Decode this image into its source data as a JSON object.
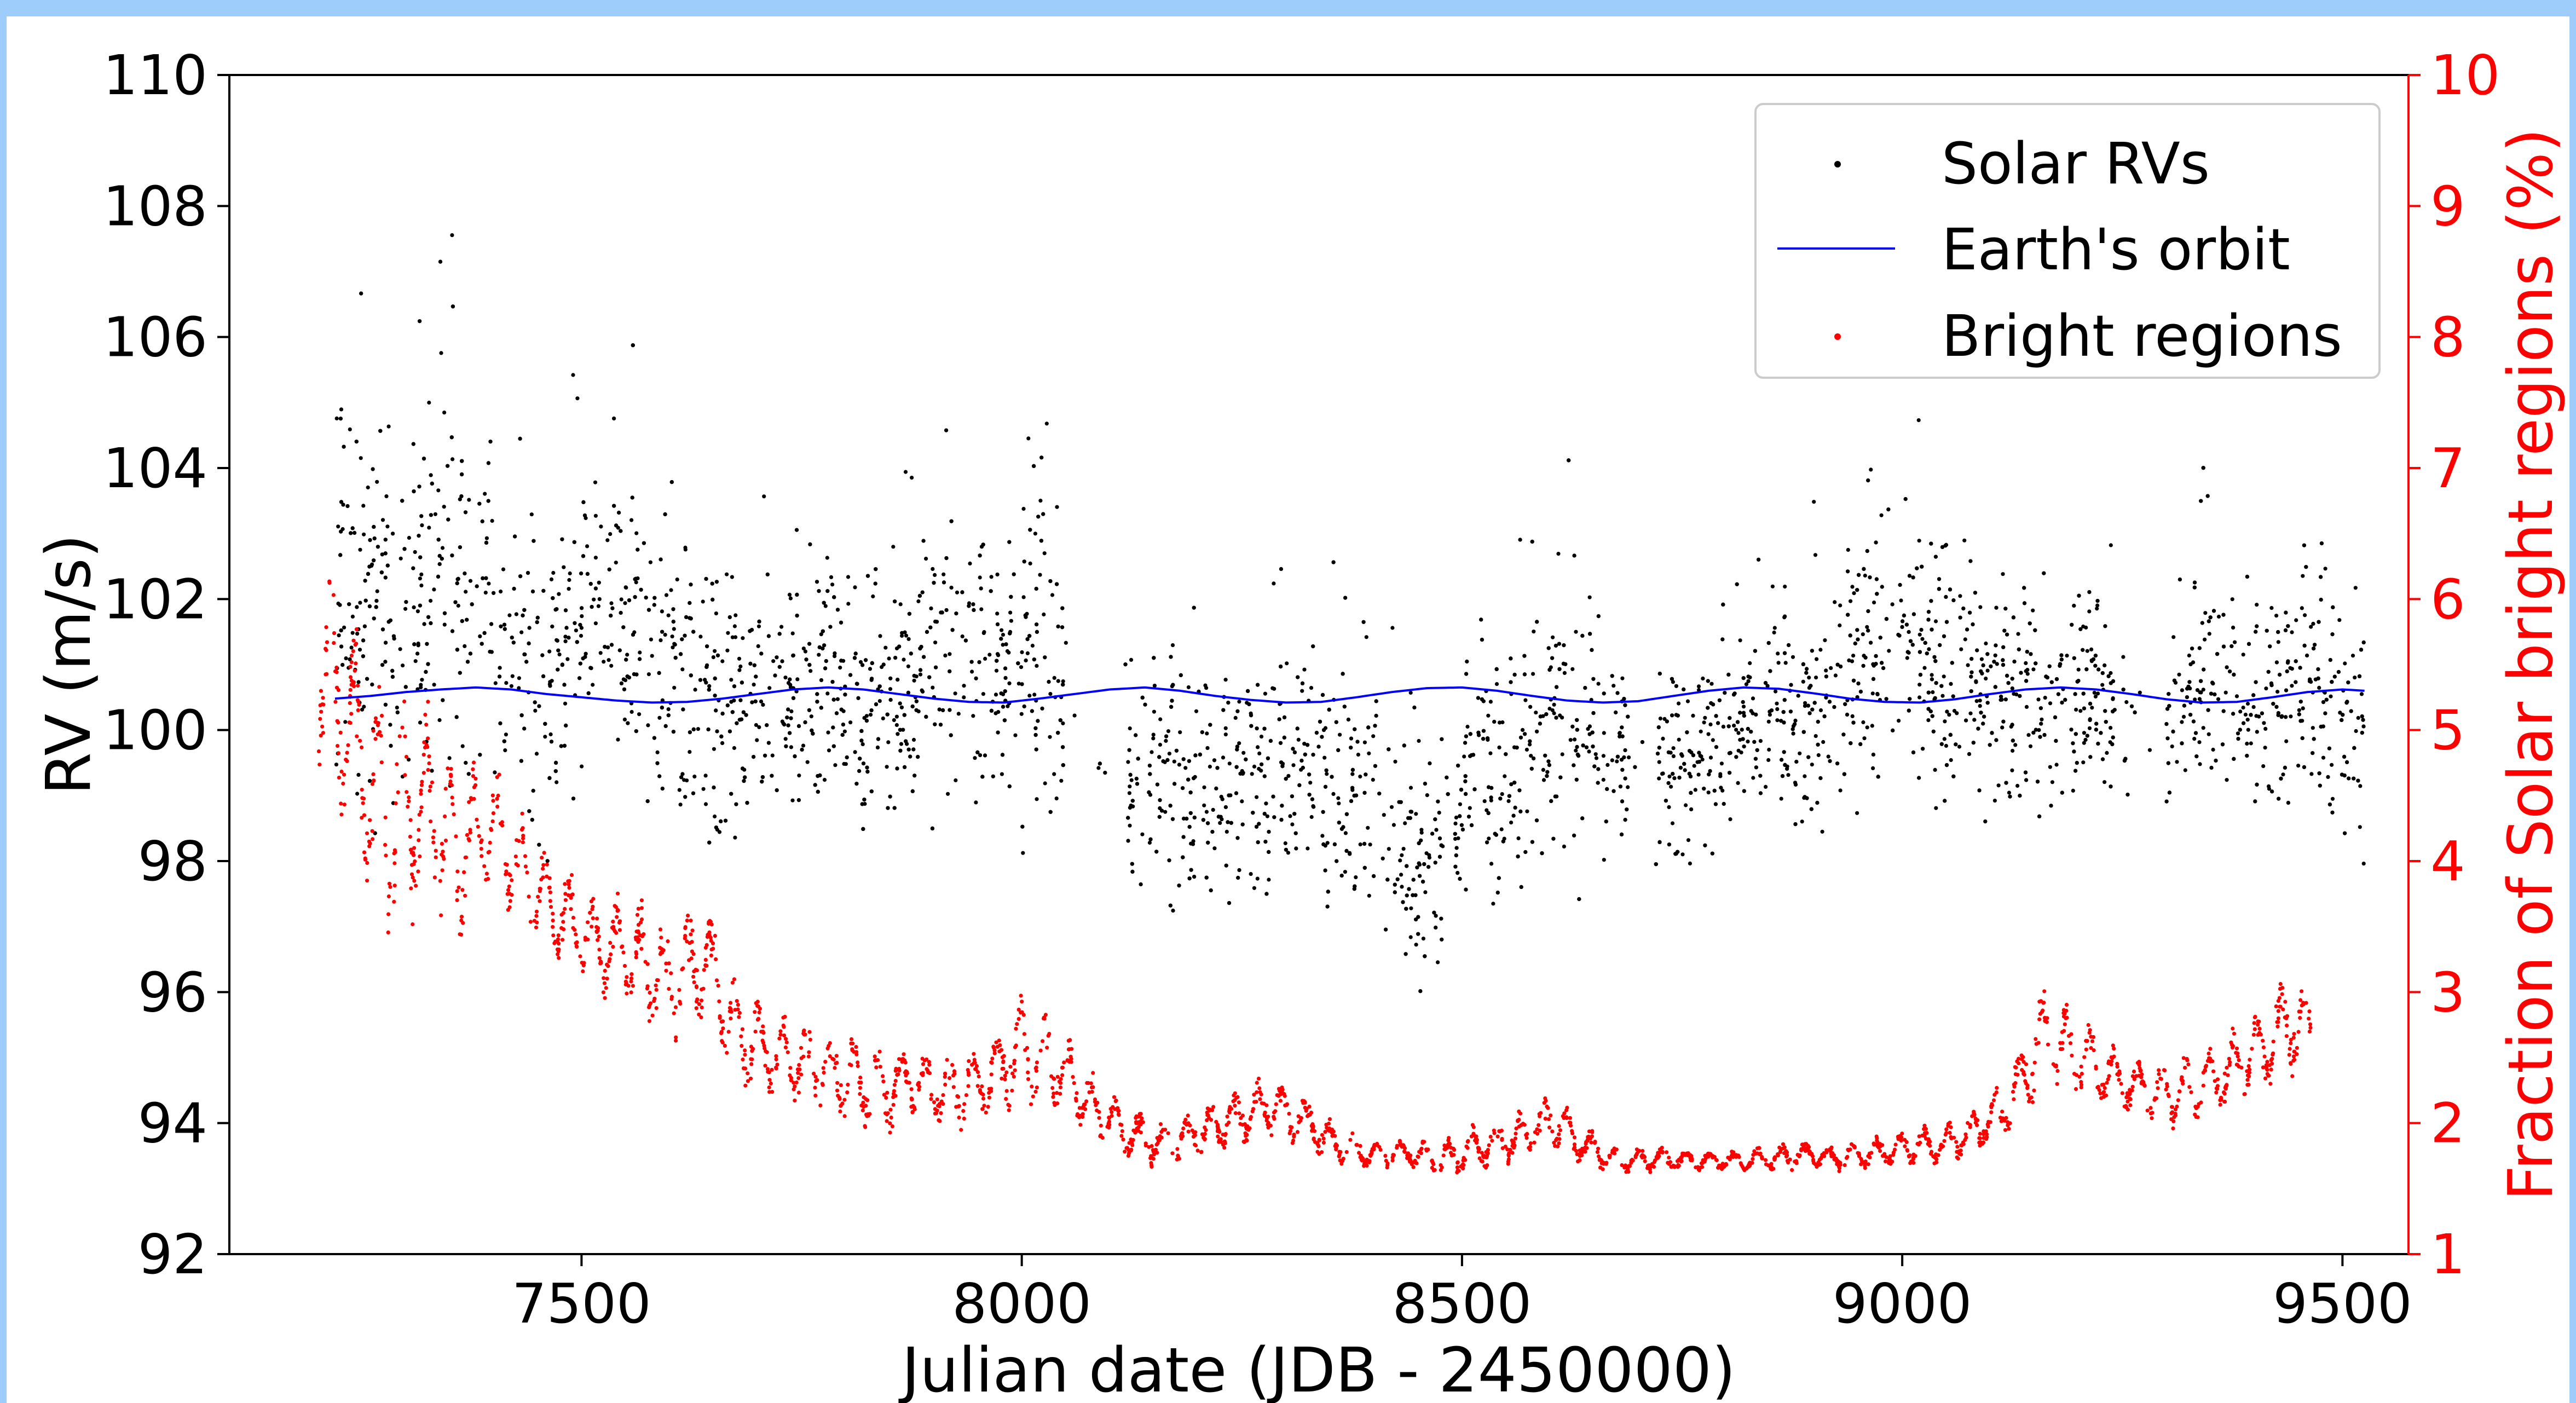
{
  "chart_data": {
    "type": "scatter",
    "title": "",
    "xlabel": "Julian date (JDB - 2450000)",
    "ylabel": "RV (m/s)",
    "y2label": "Fraction of Solar bright regions (%)",
    "xlim": [
      7100,
      9575
    ],
    "ylim": [
      92,
      110
    ],
    "y2lim": [
      1,
      10
    ],
    "xticks": [
      7500,
      8000,
      8500,
      9000,
      9500
    ],
    "yticks": [
      92,
      94,
      96,
      98,
      100,
      102,
      104,
      106,
      108,
      110
    ],
    "y2ticks": [
      1,
      2,
      3,
      4,
      5,
      6,
      7,
      8,
      9,
      10
    ],
    "grid": false,
    "legend_position": "top-right",
    "colors": {
      "rv": "#000000",
      "orbit": "#0000ff",
      "bright": "#ff0000",
      "right_axis": "#ff0000"
    },
    "legend": [
      {
        "name": "Solar RVs",
        "marker": "dot",
        "color": "#000000"
      },
      {
        "name": "Earth's orbit",
        "marker": "line",
        "color": "#0000ff"
      },
      {
        "name": "Bright regions",
        "marker": "dot",
        "color": "#ff0000"
      }
    ],
    "series": [
      {
        "name": "Solar RVs",
        "axis": "left",
        "style": "points",
        "x": [
          7220,
          7260,
          7300,
          7340,
          7380,
          7420,
          7460,
          7500,
          7540,
          7580,
          7620,
          7660,
          7700,
          7740,
          7780,
          7820,
          7860,
          7900,
          7940,
          7980,
          8020,
          8060,
          8100,
          8140,
          8180,
          8220,
          8260,
          8300,
          8340,
          8380,
          8420,
          8460,
          8500,
          8540,
          8580,
          8620,
          8660,
          8700,
          8740,
          8780,
          8820,
          8860,
          8900,
          8940,
          8980,
          9020,
          9060,
          9100,
          9140,
          9180,
          9220,
          9260,
          9300,
          9340,
          9380,
          9420,
          9460,
          9500,
          9525
        ],
        "y": [
          102.5,
          101.8,
          101.5,
          102.5,
          102.0,
          101.2,
          100.8,
          101.5,
          101.8,
          101.3,
          100.5,
          100.2,
          100.7,
          100.6,
          100.8,
          100.5,
          100.5,
          101.0,
          101.2,
          101.0,
          101.5,
          100.2,
          99.5,
          99.3,
          99.2,
          99.0,
          99.3,
          99.5,
          99.2,
          98.8,
          98.6,
          98.0,
          99.2,
          99.5,
          99.8,
          100.5,
          99.8,
          99.5,
          99.4,
          99.8,
          100.0,
          100.5,
          100.3,
          100.8,
          101.5,
          101.2,
          100.8,
          100.5,
          100.4,
          100.6,
          100.5,
          100.2,
          100.3,
          100.8,
          100.5,
          100.4,
          101.0,
          100.2,
          100.0
        ],
        "spread": [
          2.5,
          2.2,
          2.4,
          2.6,
          2.5,
          2.0,
          2.0,
          1.8,
          1.9,
          2.2,
          2.0,
          2.0,
          1.5,
          1.5,
          1.5,
          1.5,
          1.6,
          1.8,
          1.6,
          1.8,
          2.5,
          1.8,
          1.5,
          1.6,
          1.6,
          1.5,
          1.5,
          1.6,
          1.6,
          1.5,
          1.6,
          1.8,
          1.5,
          1.6,
          1.6,
          1.8,
          1.5,
          1.2,
          1.3,
          1.3,
          1.3,
          1.6,
          1.5,
          1.6,
          1.6,
          1.6,
          1.5,
          1.4,
          1.5,
          1.4,
          1.2,
          1.2,
          1.5,
          1.6,
          1.6,
          1.6,
          1.8,
          1.6,
          1.5
        ]
      },
      {
        "name": "Earth's orbit",
        "axis": "left",
        "style": "line",
        "x": [
          7220,
          7260,
          7300,
          7340,
          7380,
          7420,
          7460,
          7500,
          7540,
          7580,
          7620,
          7660,
          7700,
          7740,
          7780,
          7820,
          7860,
          7900,
          7940,
          7980,
          8020,
          8060,
          8100,
          8140,
          8180,
          8220,
          8260,
          8300,
          8340,
          8380,
          8420,
          8460,
          8500,
          8540,
          8580,
          8620,
          8660,
          8700,
          8740,
          8780,
          8820,
          8860,
          8900,
          8940,
          8980,
          9020,
          9060,
          9100,
          9140,
          9180,
          9220,
          9260,
          9300,
          9340,
          9380,
          9420,
          9460,
          9500,
          9525
        ],
        "y": [
          100.48,
          100.52,
          100.58,
          100.62,
          100.65,
          100.62,
          100.55,
          100.5,
          100.45,
          100.42,
          100.43,
          100.48,
          100.55,
          100.62,
          100.65,
          100.62,
          100.55,
          100.48,
          100.43,
          100.42,
          100.48,
          100.55,
          100.62,
          100.65,
          100.6,
          100.52,
          100.46,
          100.42,
          100.43,
          100.5,
          100.58,
          100.64,
          100.65,
          100.6,
          100.52,
          100.45,
          100.42,
          100.44,
          100.52,
          100.6,
          100.65,
          100.63,
          100.56,
          100.48,
          100.43,
          100.42,
          100.47,
          100.55,
          100.62,
          100.65,
          100.62,
          100.55,
          100.47,
          100.42,
          100.43,
          100.5,
          100.58,
          100.62,
          100.6
        ]
      },
      {
        "name": "Bright regions",
        "axis": "right",
        "style": "points",
        "x": [
          7200,
          7240,
          7280,
          7320,
          7360,
          7400,
          7440,
          7480,
          7520,
          7560,
          7600,
          7640,
          7680,
          7720,
          7760,
          7800,
          7840,
          7880,
          7920,
          7960,
          8000,
          8040,
          8080,
          8120,
          8160,
          8200,
          8240,
          8280,
          8320,
          8360,
          8400,
          8440,
          8480,
          8520,
          8560,
          8600,
          8640,
          8680,
          8720,
          8760,
          8800,
          8840,
          8880,
          8920,
          8960,
          9000,
          9040,
          9080,
          9120,
          9160,
          9200,
          9240,
          9280,
          9320,
          9360,
          9400,
          9440,
          9465
        ],
        "y": [
          5.5,
          4.8,
          4.2,
          4.3,
          4.0,
          4.2,
          3.8,
          3.5,
          3.3,
          3.2,
          3.0,
          3.2,
          2.6,
          2.5,
          2.4,
          2.3,
          2.2,
          2.3,
          2.2,
          2.3,
          2.5,
          2.4,
          2.1,
          1.9,
          1.8,
          1.9,
          2.0,
          2.1,
          2.0,
          1.8,
          1.75,
          1.75,
          1.7,
          1.8,
          1.85,
          2.0,
          1.8,
          1.7,
          1.72,
          1.7,
          1.7,
          1.7,
          1.75,
          1.72,
          1.75,
          1.8,
          1.8,
          1.9,
          2.1,
          2.6,
          2.5,
          2.3,
          2.2,
          2.2,
          2.3,
          2.5,
          2.7,
          2.7
        ],
        "spread": [
          0.9,
          1.0,
          1.0,
          0.9,
          0.8,
          0.5,
          0.5,
          0.4,
          0.4,
          0.5,
          0.5,
          0.5,
          0.4,
          0.4,
          0.35,
          0.35,
          0.35,
          0.3,
          0.3,
          0.3,
          0.5,
          0.35,
          0.25,
          0.2,
          0.2,
          0.2,
          0.25,
          0.25,
          0.2,
          0.15,
          0.12,
          0.12,
          0.15,
          0.2,
          0.2,
          0.25,
          0.15,
          0.1,
          0.1,
          0.08,
          0.08,
          0.1,
          0.12,
          0.1,
          0.12,
          0.15,
          0.15,
          0.2,
          0.25,
          0.4,
          0.35,
          0.3,
          0.25,
          0.3,
          0.3,
          0.35,
          0.4,
          0.3
        ]
      }
    ]
  }
}
